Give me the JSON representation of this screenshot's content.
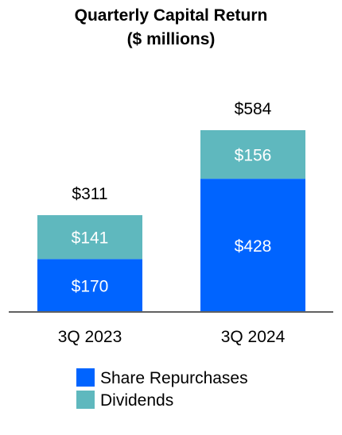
{
  "chart_data": {
    "type": "bar",
    "stacked": true,
    "title": "Quarterly Capital Return",
    "subtitle": "($ millions)",
    "categories": [
      "3Q 2023",
      "3Q 2024"
    ],
    "series": [
      {
        "name": "Share Repurchases",
        "values": [
          170,
          428
        ],
        "labels": [
          "$170",
          "$428"
        ],
        "color": "#0064FF"
      },
      {
        "name": "Dividends",
        "values": [
          141,
          156
        ],
        "labels": [
          "$141",
          "$156"
        ],
        "color": "#5FB8BE"
      }
    ],
    "totals": [
      311,
      584
    ],
    "total_labels": [
      "$311",
      "$584"
    ],
    "xlabel": "",
    "ylabel": "",
    "ylim": [
      0,
      584
    ],
    "grid": false,
    "legend_position": "bottom",
    "axis_color": "#606060"
  }
}
